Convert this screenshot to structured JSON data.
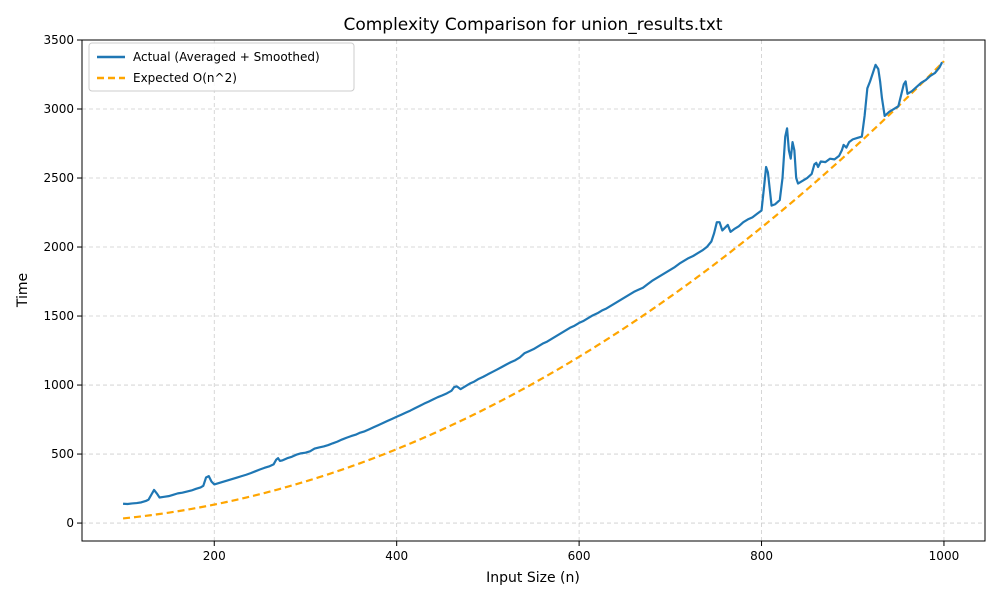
{
  "chart_data": {
    "type": "line",
    "title": "Complexity Comparison for union_results.txt",
    "xlabel": "Input Size (n)",
    "ylabel": "Time",
    "xlim": [
      55,
      1045
    ],
    "ylim": [
      -130,
      3500
    ],
    "xticks": [
      200,
      400,
      600,
      800,
      1000
    ],
    "yticks": [
      0,
      500,
      1000,
      1500,
      2000,
      2500,
      3000,
      3500
    ],
    "grid": true,
    "legend_position": "top-left",
    "series": [
      {
        "name": "Actual (Averaged + Smoothed)",
        "style": "solid",
        "color": "#1f77b4",
        "points": [
          [
            100,
            140
          ],
          [
            105,
            138
          ],
          [
            110,
            142
          ],
          [
            115,
            145
          ],
          [
            120,
            150
          ],
          [
            125,
            160
          ],
          [
            128,
            170
          ],
          [
            131,
            205
          ],
          [
            134,
            240
          ],
          [
            137,
            215
          ],
          [
            140,
            185
          ],
          [
            145,
            190
          ],
          [
            150,
            195
          ],
          [
            155,
            205
          ],
          [
            160,
            215
          ],
          [
            165,
            220
          ],
          [
            170,
            228
          ],
          [
            175,
            236
          ],
          [
            180,
            248
          ],
          [
            185,
            258
          ],
          [
            188,
            270
          ],
          [
            191,
            330
          ],
          [
            194,
            340
          ],
          [
            197,
            300
          ],
          [
            200,
            280
          ],
          [
            205,
            290
          ],
          [
            210,
            300
          ],
          [
            215,
            310
          ],
          [
            220,
            320
          ],
          [
            225,
            330
          ],
          [
            230,
            340
          ],
          [
            235,
            350
          ],
          [
            240,
            362
          ],
          [
            245,
            375
          ],
          [
            250,
            388
          ],
          [
            255,
            400
          ],
          [
            260,
            410
          ],
          [
            265,
            425
          ],
          [
            268,
            460
          ],
          [
            270,
            470
          ],
          [
            272,
            450
          ],
          [
            275,
            455
          ],
          [
            280,
            470
          ],
          [
            285,
            480
          ],
          [
            290,
            495
          ],
          [
            295,
            505
          ],
          [
            300,
            510
          ],
          [
            305,
            520
          ],
          [
            310,
            540
          ],
          [
            315,
            548
          ],
          [
            320,
            555
          ],
          [
            325,
            565
          ],
          [
            330,
            578
          ],
          [
            335,
            590
          ],
          [
            340,
            605
          ],
          [
            345,
            618
          ],
          [
            350,
            630
          ],
          [
            355,
            640
          ],
          [
            360,
            655
          ],
          [
            365,
            665
          ],
          [
            370,
            680
          ],
          [
            375,
            695
          ],
          [
            380,
            710
          ],
          [
            385,
            725
          ],
          [
            390,
            740
          ],
          [
            395,
            755
          ],
          [
            400,
            770
          ],
          [
            405,
            785
          ],
          [
            410,
            800
          ],
          [
            415,
            815
          ],
          [
            420,
            832
          ],
          [
            425,
            848
          ],
          [
            430,
            865
          ],
          [
            435,
            880
          ],
          [
            440,
            896
          ],
          [
            445,
            912
          ],
          [
            450,
            925
          ],
          [
            455,
            940
          ],
          [
            460,
            958
          ],
          [
            463,
            985
          ],
          [
            466,
            990
          ],
          [
            470,
            970
          ],
          [
            475,
            990
          ],
          [
            480,
            1010
          ],
          [
            485,
            1025
          ],
          [
            490,
            1045
          ],
          [
            495,
            1060
          ],
          [
            500,
            1078
          ],
          [
            505,
            1095
          ],
          [
            510,
            1112
          ],
          [
            515,
            1130
          ],
          [
            520,
            1148
          ],
          [
            525,
            1165
          ],
          [
            530,
            1180
          ],
          [
            535,
            1200
          ],
          [
            540,
            1230
          ],
          [
            545,
            1245
          ],
          [
            550,
            1260
          ],
          [
            555,
            1280
          ],
          [
            560,
            1300
          ],
          [
            565,
            1315
          ],
          [
            570,
            1335
          ],
          [
            575,
            1355
          ],
          [
            580,
            1375
          ],
          [
            585,
            1395
          ],
          [
            590,
            1415
          ],
          [
            595,
            1430
          ],
          [
            600,
            1450
          ],
          [
            605,
            1465
          ],
          [
            610,
            1485
          ],
          [
            615,
            1505
          ],
          [
            620,
            1520
          ],
          [
            625,
            1540
          ],
          [
            630,
            1555
          ],
          [
            635,
            1575
          ],
          [
            640,
            1595
          ],
          [
            645,
            1615
          ],
          [
            650,
            1635
          ],
          [
            655,
            1655
          ],
          [
            660,
            1675
          ],
          [
            665,
            1690
          ],
          [
            670,
            1705
          ],
          [
            675,
            1730
          ],
          [
            680,
            1755
          ],
          [
            685,
            1775
          ],
          [
            690,
            1795
          ],
          [
            695,
            1815
          ],
          [
            700,
            1835
          ],
          [
            705,
            1855
          ],
          [
            710,
            1880
          ],
          [
            715,
            1900
          ],
          [
            720,
            1920
          ],
          [
            725,
            1935
          ],
          [
            730,
            1955
          ],
          [
            735,
            1975
          ],
          [
            740,
            2000
          ],
          [
            745,
            2040
          ],
          [
            748,
            2100
          ],
          [
            751,
            2180
          ],
          [
            754,
            2180
          ],
          [
            757,
            2120
          ],
          [
            760,
            2140
          ],
          [
            763,
            2160
          ],
          [
            766,
            2110
          ],
          [
            770,
            2130
          ],
          [
            775,
            2150
          ],
          [
            780,
            2180
          ],
          [
            785,
            2200
          ],
          [
            790,
            2215
          ],
          [
            795,
            2240
          ],
          [
            800,
            2265
          ],
          [
            803,
            2450
          ],
          [
            805,
            2580
          ],
          [
            807,
            2540
          ],
          [
            809,
            2420
          ],
          [
            811,
            2300
          ],
          [
            815,
            2310
          ],
          [
            820,
            2340
          ],
          [
            823,
            2500
          ],
          [
            826,
            2800
          ],
          [
            828,
            2860
          ],
          [
            830,
            2700
          ],
          [
            832,
            2640
          ],
          [
            834,
            2760
          ],
          [
            836,
            2700
          ],
          [
            838,
            2500
          ],
          [
            840,
            2460
          ],
          [
            845,
            2480
          ],
          [
            850,
            2500
          ],
          [
            855,
            2530
          ],
          [
            858,
            2600
          ],
          [
            860,
            2610
          ],
          [
            862,
            2580
          ],
          [
            865,
            2620
          ],
          [
            870,
            2615
          ],
          [
            875,
            2640
          ],
          [
            880,
            2635
          ],
          [
            885,
            2660
          ],
          [
            888,
            2700
          ],
          [
            890,
            2740
          ],
          [
            893,
            2720
          ],
          [
            896,
            2760
          ],
          [
            900,
            2780
          ],
          [
            905,
            2790
          ],
          [
            910,
            2800
          ],
          [
            913,
            2950
          ],
          [
            916,
            3150
          ],
          [
            919,
            3200
          ],
          [
            922,
            3260
          ],
          [
            925,
            3320
          ],
          [
            928,
            3290
          ],
          [
            930,
            3200
          ],
          [
            932,
            3080
          ],
          [
            935,
            2950
          ],
          [
            940,
            2980
          ],
          [
            945,
            3000
          ],
          [
            950,
            3020
          ],
          [
            953,
            3100
          ],
          [
            956,
            3180
          ],
          [
            958,
            3200
          ],
          [
            960,
            3110
          ],
          [
            965,
            3130
          ],
          [
            970,
            3160
          ],
          [
            975,
            3190
          ],
          [
            980,
            3210
          ],
          [
            985,
            3240
          ],
          [
            990,
            3260
          ],
          [
            995,
            3300
          ],
          [
            998,
            3340
          ]
        ]
      },
      {
        "name": "Expected O(n^2)",
        "style": "dashed",
        "color": "#ffa500",
        "formula_coefficient": 0.003347,
        "x_range": [
          100,
          1000
        ]
      }
    ]
  }
}
